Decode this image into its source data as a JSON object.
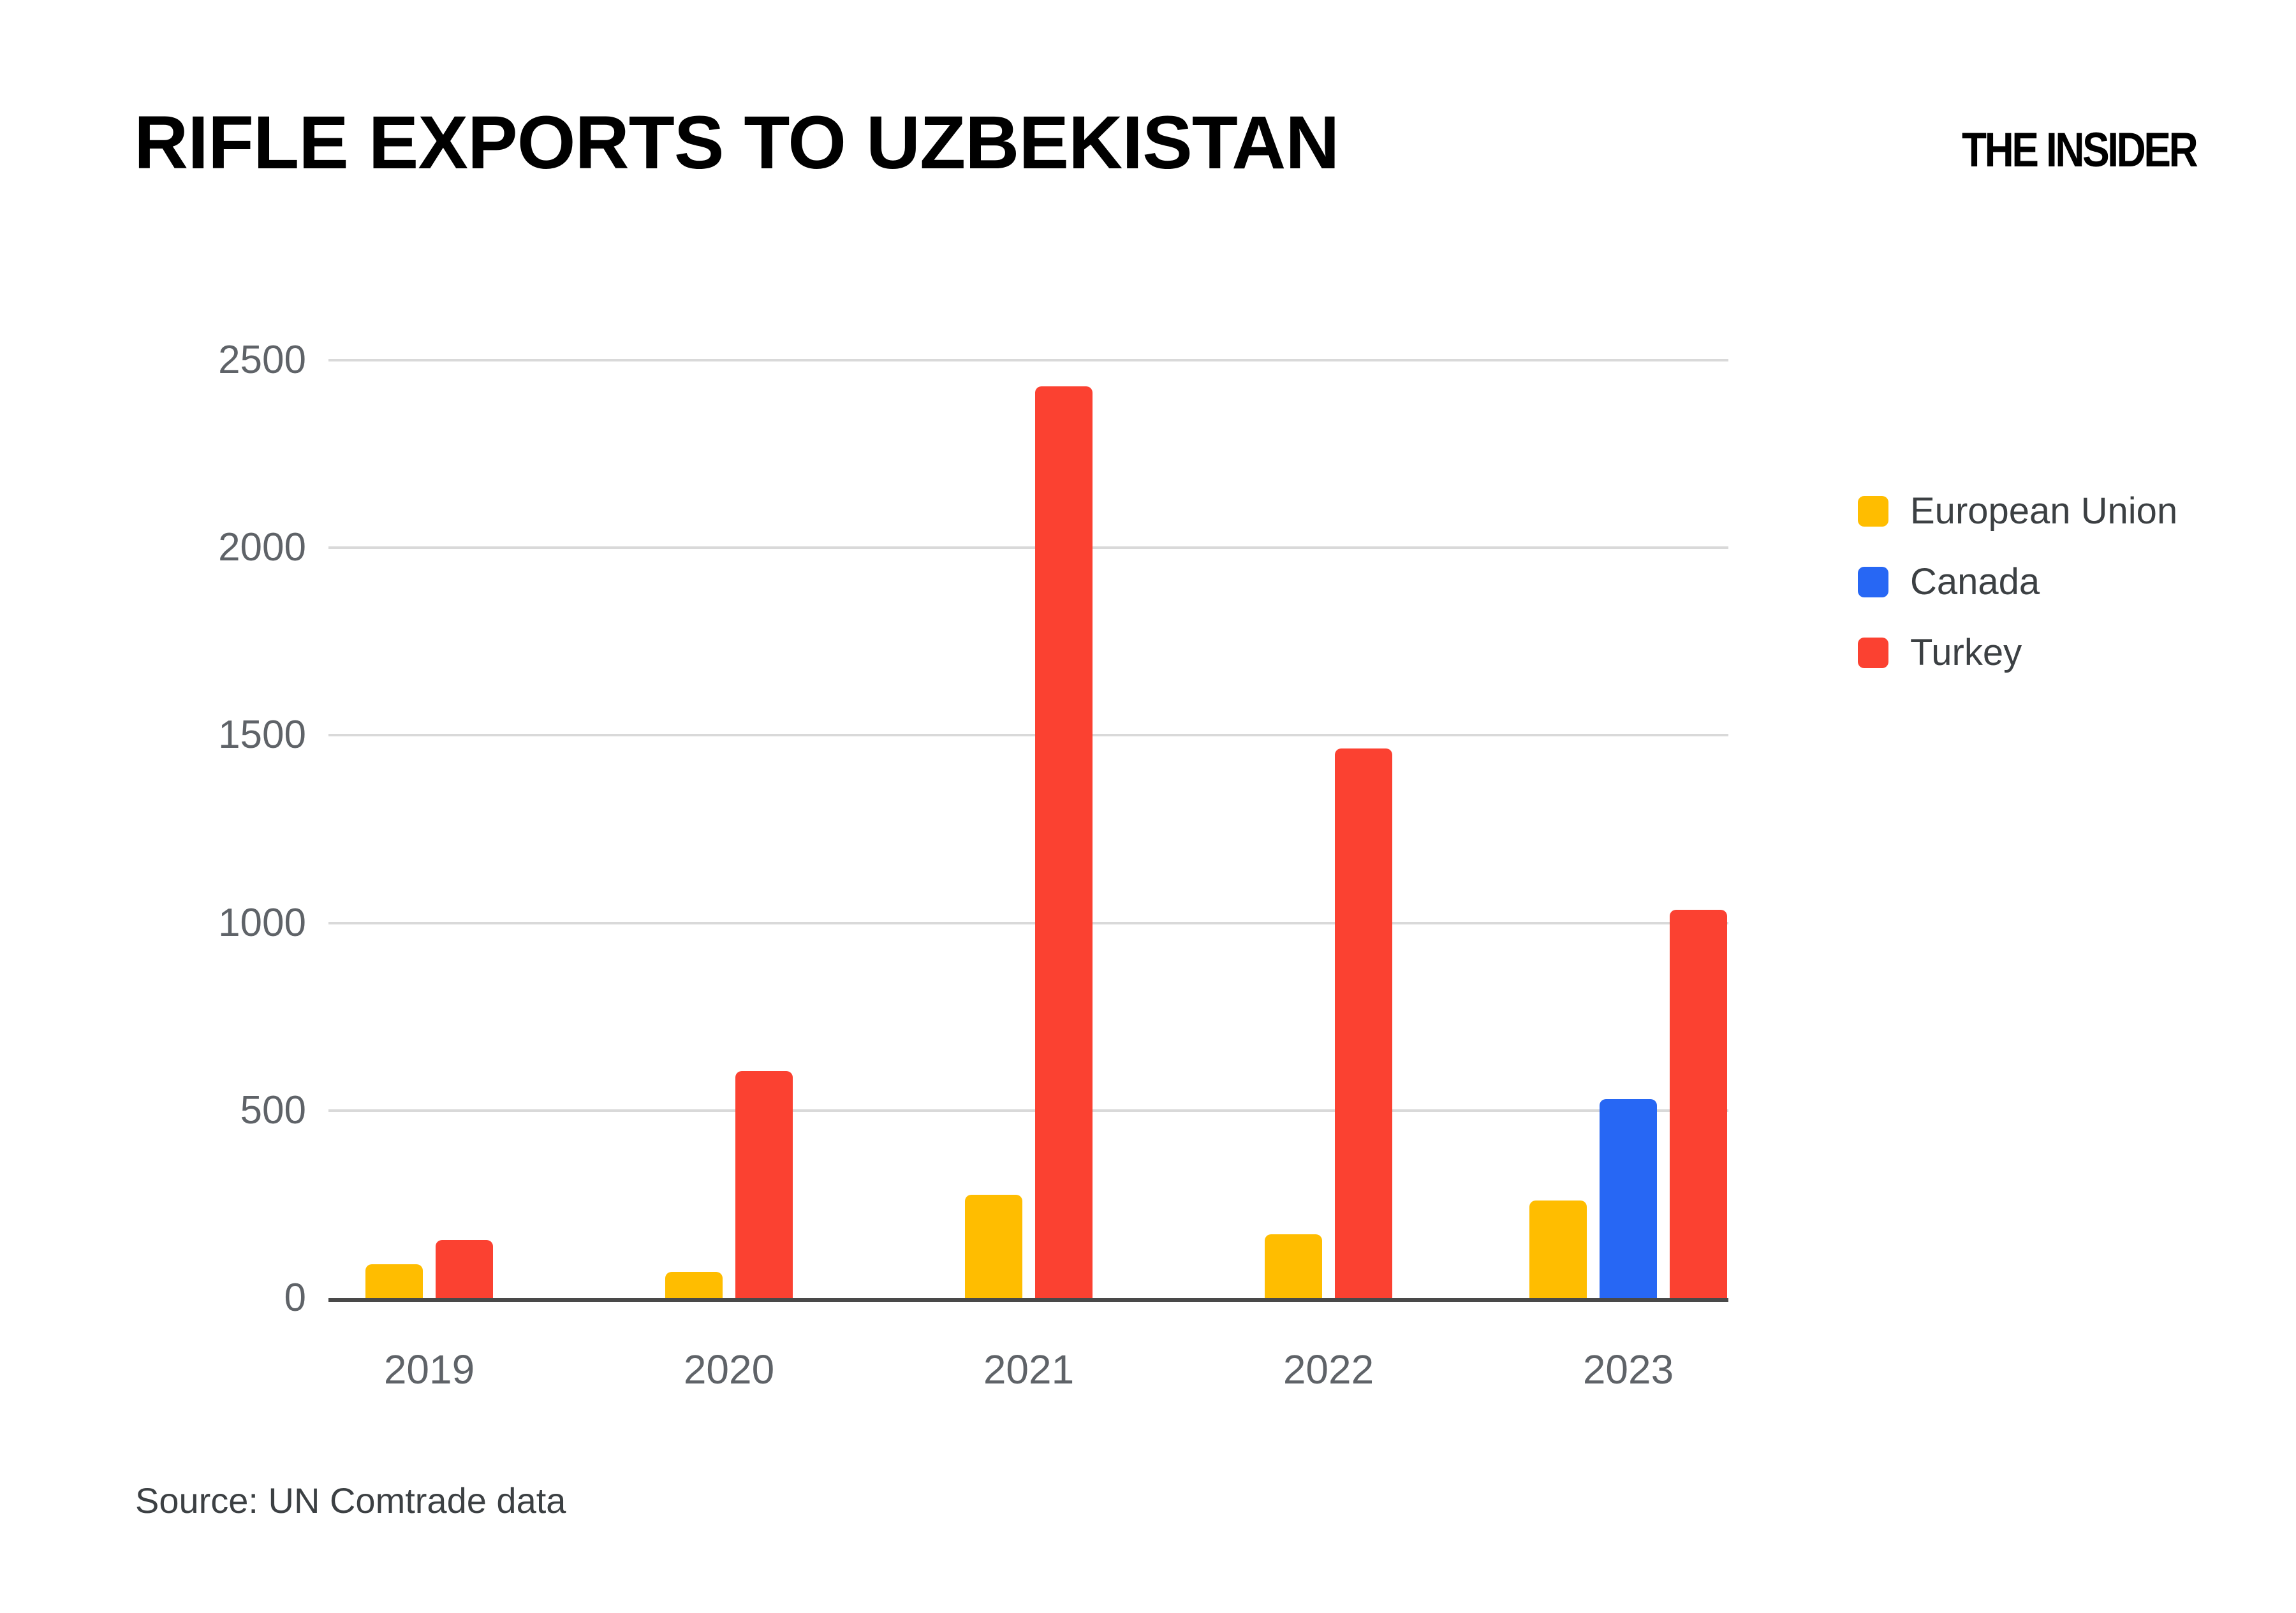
{
  "header": {
    "title": "RIFLE EXPORTS TO UZBEKISTAN",
    "logo": "THE INSIDER"
  },
  "source": {
    "label": "Source: UN Comtrade data"
  },
  "chart_data": {
    "type": "bar",
    "title": "RIFLE EXPORTS TO UZBEKISTAN",
    "categories": [
      "2019",
      "2020",
      "2021",
      "2022",
      "2023"
    ],
    "series": [
      {
        "name": "European Union",
        "color": "#FFBD00",
        "values": [
          90,
          70,
          275,
          170,
          260
        ]
      },
      {
        "name": "Canada",
        "color": "#2767F4",
        "values": [
          0,
          0,
          0,
          0,
          530
        ]
      },
      {
        "name": "Turkey",
        "color": "#FB4131",
        "values": [
          155,
          605,
          2430,
          1465,
          1035
        ]
      }
    ],
    "xlabel": "",
    "ylabel": "",
    "ylim": [
      0,
      2500
    ],
    "yticks": [
      0,
      500,
      1000,
      1500,
      2000,
      2500
    ],
    "grid": true,
    "legend_position": "right",
    "gridline_color": "#d9d9d9",
    "axis_color": "#494949",
    "tick_label_color": "#5f6368",
    "legend_text_color": "#3c4043"
  }
}
